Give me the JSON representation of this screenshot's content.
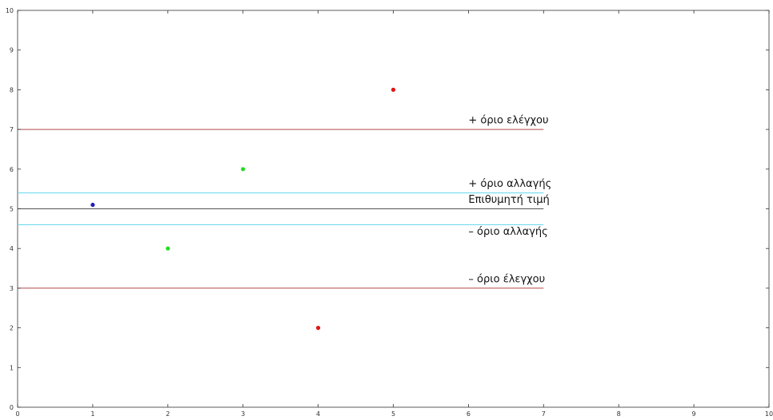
{
  "chart_data": {
    "type": "scatter",
    "xlim": [
      0,
      10
    ],
    "ylim": [
      0,
      10
    ],
    "xticks": [
      "0",
      "1",
      "2",
      "3",
      "4",
      "5",
      "6",
      "7",
      "8",
      "9",
      "10"
    ],
    "yticks": [
      "0",
      "1",
      "2",
      "3",
      "4",
      "5",
      "6",
      "7",
      "8",
      "9",
      "10"
    ],
    "grid": false,
    "points": [
      {
        "x": 1,
        "y": 5.1,
        "color": "#1f1fb4"
      },
      {
        "x": 2,
        "y": 4,
        "color": "#22dd22"
      },
      {
        "x": 3,
        "y": 6,
        "color": "#22dd22"
      },
      {
        "x": 4,
        "y": 2,
        "color": "#e01515"
      },
      {
        "x": 5,
        "y": 8,
        "color": "#e01515"
      }
    ],
    "hlines": [
      {
        "y": 7,
        "x0": 0,
        "x1": 7,
        "color": "#b5474a",
        "label": "+ όριο ελέγχου"
      },
      {
        "y": 5.4,
        "x0": 0,
        "x1": 7,
        "color": "#5fd6ee",
        "label": "+ όριο αλλαγής"
      },
      {
        "y": 5,
        "x0": 0,
        "x1": 7,
        "color": "#555555",
        "label": "Επιθυμητή τιμή"
      },
      {
        "y": 4.6,
        "x0": 0,
        "x1": 7,
        "color": "#5fd6ee",
        "label": "– όριο αλλαγής"
      },
      {
        "y": 3,
        "x0": 0,
        "x1": 7,
        "color": "#b5474a",
        "label": "– όριο έλεγχου"
      }
    ],
    "annotations": [
      {
        "text": "+ όριο ελέγχου",
        "x": 6,
        "y": 7.15
      },
      {
        "text": "+ όριο αλλαγής",
        "x": 6,
        "y": 5.55
      },
      {
        "text": "Επιθυμητή τιμή",
        "x": 6,
        "y": 5.15
      },
      {
        "text": "– όριο αλλαγής",
        "x": 6,
        "y": 4.35
      },
      {
        "text": "– όριο έλεγχου",
        "x": 6,
        "y": 3.15
      }
    ]
  }
}
